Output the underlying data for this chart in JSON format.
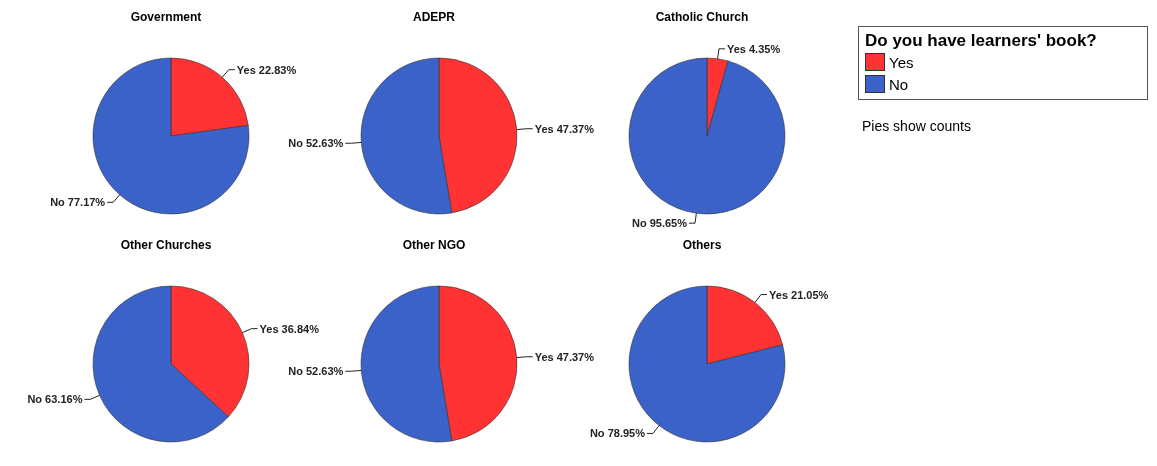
{
  "chart_data": [
    {
      "type": "pie",
      "title": "Government",
      "categories": [
        "Yes",
        "No"
      ],
      "values": [
        22.83,
        77.17
      ],
      "colors": [
        "#ff3333",
        "#3a62c8"
      ],
      "value_labels": [
        "22.83%",
        "77.17%"
      ],
      "legend": "right",
      "legend_title": "Do you have learners' book?",
      "annotations": [
        "Pies show counts"
      ]
    },
    {
      "type": "pie",
      "title": "ADEPR",
      "categories": [
        "Yes",
        "No"
      ],
      "values": [
        47.37,
        52.63
      ],
      "colors": [
        "#ff3333",
        "#3a62c8"
      ],
      "value_labels": [
        "47.37%",
        "52.63%"
      ]
    },
    {
      "type": "pie",
      "title": "Catholic Church",
      "categories": [
        "Yes",
        "No"
      ],
      "values": [
        4.35,
        95.65
      ],
      "colors": [
        "#ff3333",
        "#3a62c8"
      ],
      "value_labels": [
        "4.35%",
        "95.65%"
      ]
    },
    {
      "type": "pie",
      "title": "Other Churches",
      "categories": [
        "Yes",
        "No"
      ],
      "values": [
        36.84,
        63.16
      ],
      "colors": [
        "#ff3333",
        "#3a62c8"
      ],
      "value_labels": [
        "36.84%",
        "63.16%"
      ]
    },
    {
      "type": "pie",
      "title": "Other NGO",
      "categories": [
        "Yes",
        "No"
      ],
      "values": [
        47.37,
        52.63
      ],
      "colors": [
        "#ff3333",
        "#3a62c8"
      ],
      "value_labels": [
        "47.37%",
        "52.63%"
      ]
    },
    {
      "type": "pie",
      "title": "Others",
      "categories": [
        "Yes",
        "No"
      ],
      "values": [
        21.05,
        78.95
      ],
      "colors": [
        "#ff3333",
        "#3a62c8"
      ],
      "value_labels": [
        "21.05%",
        "78.95%"
      ]
    }
  ]
}
